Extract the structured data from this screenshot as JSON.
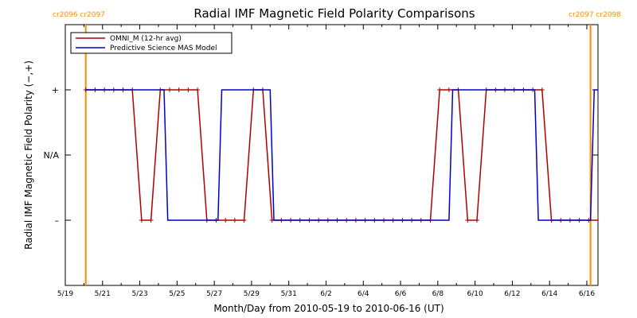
{
  "chart_data": {
    "type": "line",
    "title": "Radial IMF Magnetic Field Polarity Comparisons",
    "xlabel": "Month/Day from 2010-05-19 to 2010-06-16 (UT)",
    "ylabel": "Radial IMF Magnetic Field Polarity (−,+)",
    "x_range_days": [
      0,
      28.6
    ],
    "ylim": [
      -2,
      2
    ],
    "x_ticks": [
      {
        "d": 0,
        "label": "5/19"
      },
      {
        "d": 2,
        "label": "5/21"
      },
      {
        "d": 4,
        "label": "5/23"
      },
      {
        "d": 6,
        "label": "5/25"
      },
      {
        "d": 8,
        "label": "5/27"
      },
      {
        "d": 10,
        "label": "5/29"
      },
      {
        "d": 12,
        "label": "5/31"
      },
      {
        "d": 14,
        "label": "6/2"
      },
      {
        "d": 16,
        "label": "6/4"
      },
      {
        "d": 18,
        "label": "6/6"
      },
      {
        "d": 20,
        "label": "6/8"
      },
      {
        "d": 22,
        "label": "6/10"
      },
      {
        "d": 24,
        "label": "6/12"
      },
      {
        "d": 26,
        "label": "6/14"
      },
      {
        "d": 28,
        "label": "6/16"
      }
    ],
    "y_ticks": [
      {
        "v": 1,
        "label": "+"
      },
      {
        "v": 0,
        "label": "N/A"
      },
      {
        "v": -1,
        "label": "–"
      }
    ],
    "vlines": [
      {
        "d": 1.1,
        "label": "cr2096 cr2097",
        "anchor": "start"
      },
      {
        "d": 28.2,
        "label": "cr2097 cr2098",
        "anchor": "end"
      }
    ],
    "legend_position": "top-left",
    "series": [
      {
        "name": "OMNI_M (12-hr avg)",
        "color": "#b00000",
        "markers": true,
        "points": [
          [
            1.1,
            1
          ],
          [
            1.6,
            1
          ],
          [
            2.1,
            1
          ],
          [
            2.6,
            1
          ],
          [
            3.1,
            1
          ],
          [
            3.6,
            1
          ],
          [
            4.1,
            -1
          ],
          [
            4.6,
            -1
          ],
          [
            5.1,
            1
          ],
          [
            5.6,
            1
          ],
          [
            6.1,
            1
          ],
          [
            6.6,
            1
          ],
          [
            7.1,
            1
          ],
          [
            7.6,
            -1
          ],
          [
            8.1,
            -1
          ],
          [
            8.6,
            -1
          ],
          [
            9.1,
            -1
          ],
          [
            9.6,
            -1
          ],
          [
            10.1,
            1
          ],
          [
            10.6,
            1
          ],
          [
            11.1,
            -1
          ],
          [
            11.6,
            -1
          ],
          [
            12.1,
            -1
          ],
          [
            12.6,
            -1
          ],
          [
            13.1,
            -1
          ],
          [
            13.6,
            -1
          ],
          [
            14.1,
            -1
          ],
          [
            14.6,
            -1
          ],
          [
            15.1,
            -1
          ],
          [
            15.6,
            -1
          ],
          [
            16.1,
            -1
          ],
          [
            16.6,
            -1
          ],
          [
            17.1,
            -1
          ],
          [
            17.6,
            -1
          ],
          [
            18.1,
            -1
          ],
          [
            18.6,
            -1
          ],
          [
            19.1,
            -1
          ],
          [
            19.6,
            -1
          ],
          [
            20.1,
            1
          ],
          [
            20.6,
            1
          ],
          [
            21.1,
            1
          ],
          [
            21.6,
            -1
          ],
          [
            22.1,
            -1
          ],
          [
            22.6,
            1
          ],
          [
            23.1,
            1
          ],
          [
            23.6,
            1
          ],
          [
            24.1,
            1
          ],
          [
            24.6,
            1
          ],
          [
            25.1,
            1
          ],
          [
            25.6,
            1
          ],
          [
            26.1,
            -1
          ],
          [
            26.6,
            -1
          ],
          [
            27.1,
            -1
          ],
          [
            27.6,
            -1
          ],
          [
            28.1,
            -1
          ],
          [
            28.6,
            -1
          ],
          [
            29.1,
            1
          ],
          [
            29.6,
            1
          ]
        ]
      },
      {
        "name": "Predictive Science MAS Model",
        "color": "#0000cc",
        "markers": false,
        "points": [
          [
            1.1,
            1
          ],
          [
            5.3,
            1
          ],
          [
            5.5,
            -1
          ],
          [
            8.2,
            -1
          ],
          [
            8.4,
            1
          ],
          [
            11.0,
            1
          ],
          [
            11.2,
            -1
          ],
          [
            20.6,
            -1
          ],
          [
            20.8,
            1
          ],
          [
            25.2,
            1
          ],
          [
            25.4,
            -1
          ],
          [
            28.2,
            -1
          ],
          [
            28.4,
            1
          ],
          [
            28.6,
            1
          ]
        ]
      }
    ]
  }
}
